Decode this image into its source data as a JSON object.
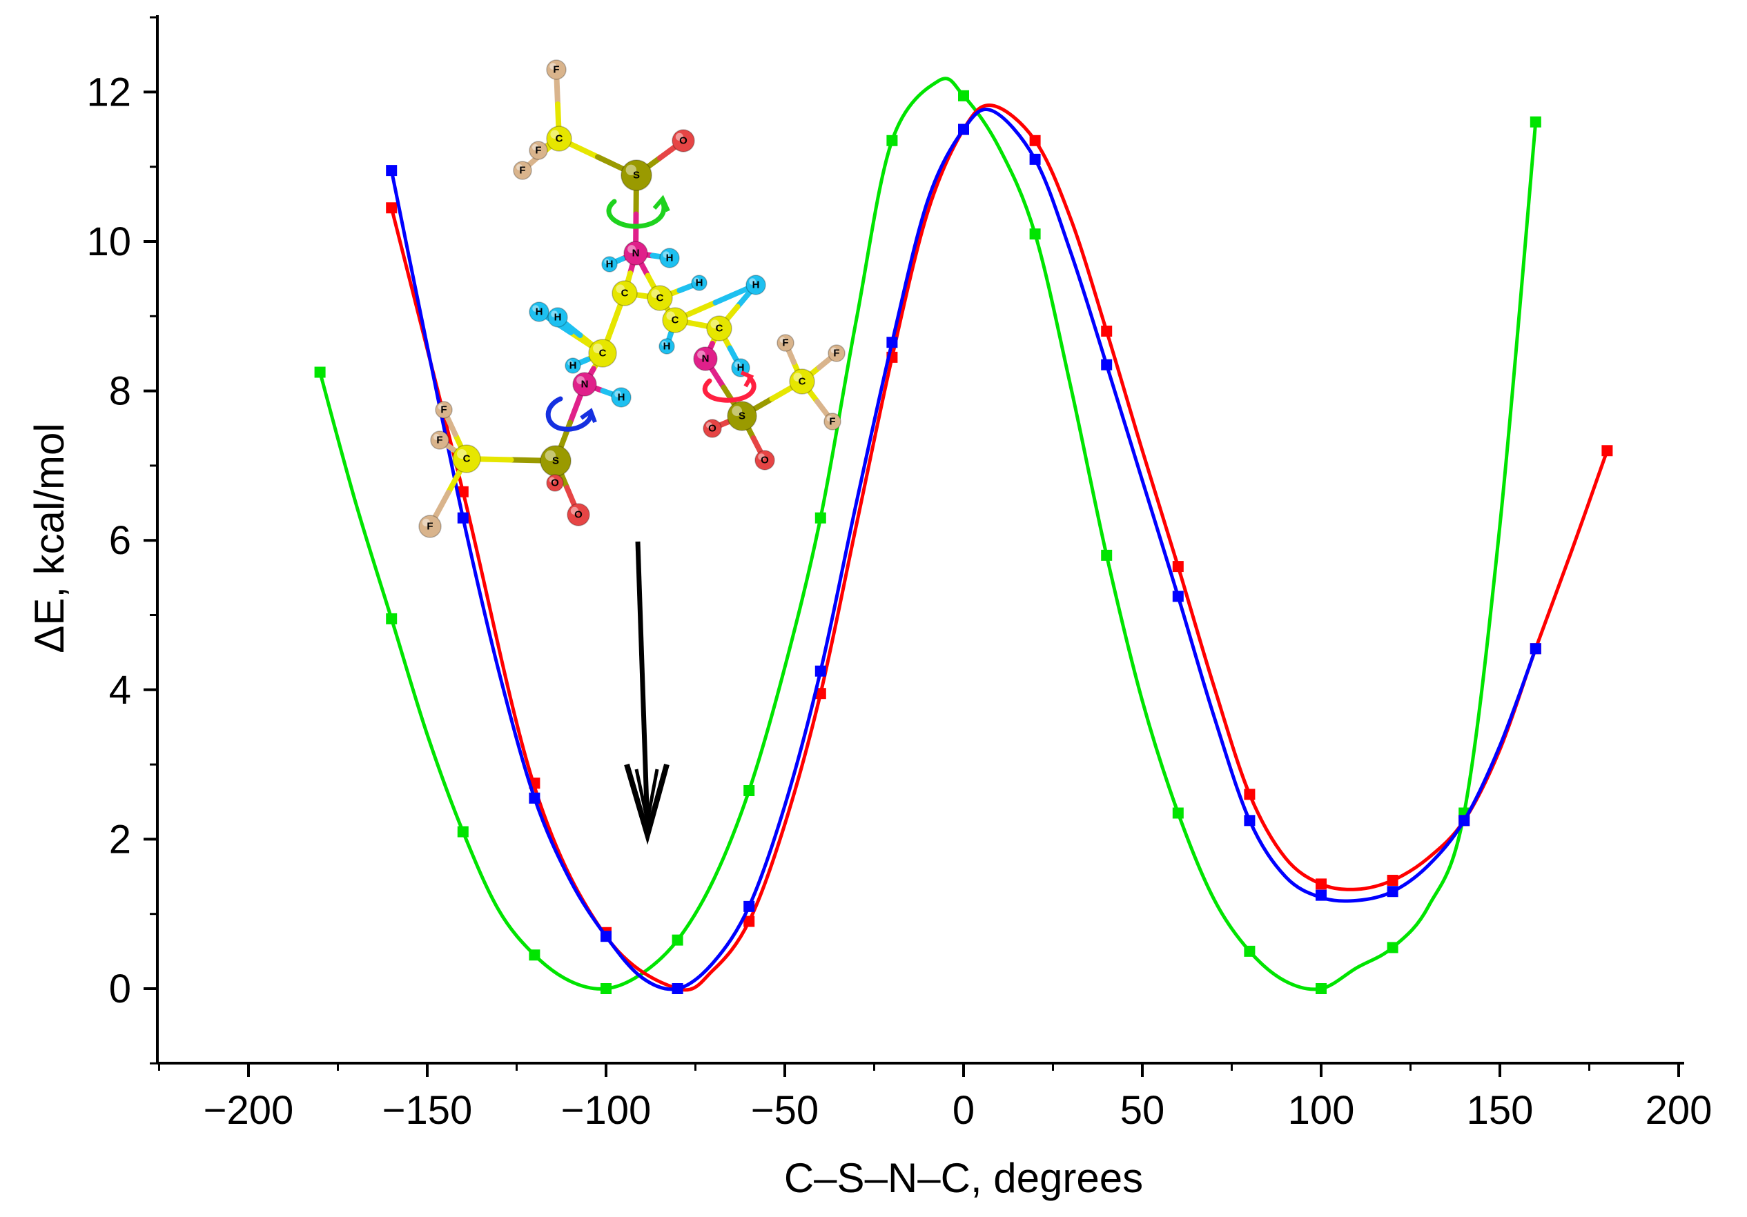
{
  "chart_data": {
    "type": "line",
    "title": "",
    "xlabel": "C–S–N–C, degrees",
    "ylabel": "ΔE, kcal/mol",
    "xlim": [
      -225,
      200
    ],
    "ylim": [
      -1,
      13
    ],
    "x_ticks": [
      -200,
      -150,
      -100,
      -50,
      0,
      50,
      100,
      150,
      200
    ],
    "x_tick_labels": [
      "−200",
      "−150",
      "−100",
      "−50",
      "0",
      "50",
      "100",
      "150",
      "200"
    ],
    "y_ticks": [
      0,
      2,
      4,
      6,
      8,
      10,
      12
    ],
    "y_tick_labels": [
      "0",
      "2",
      "4",
      "6",
      "8",
      "10",
      "12"
    ],
    "grid": false,
    "series": [
      {
        "name": "red",
        "color": "#ff0000",
        "x": [
          -160,
          -140,
          -120,
          -100,
          -80,
          -60,
          -40,
          -20,
          0,
          20,
          40,
          60,
          80,
          100,
          120,
          140,
          160,
          180
        ],
        "values": [
          10.45,
          6.65,
          2.75,
          0.75,
          0.0,
          0.9,
          3.95,
          8.45,
          11.5,
          11.35,
          8.8,
          5.65,
          2.6,
          1.4,
          1.45,
          2.25,
          4.55,
          7.2
        ],
        "curve": [
          [
            -160,
            10.45
          ],
          [
            -140,
            6.65
          ],
          [
            -120,
            2.7
          ],
          [
            -100,
            0.7
          ],
          [
            -80,
            0.0
          ],
          [
            -70,
            0.25
          ],
          [
            -60,
            0.9
          ],
          [
            -50,
            2.2
          ],
          [
            -40,
            3.95
          ],
          [
            -30,
            6.2
          ],
          [
            -20,
            8.45
          ],
          [
            -10,
            10.4
          ],
          [
            0,
            11.5
          ],
          [
            8,
            11.82
          ],
          [
            20,
            11.35
          ],
          [
            30,
            10.3
          ],
          [
            40,
            8.8
          ],
          [
            50,
            7.2
          ],
          [
            60,
            5.65
          ],
          [
            70,
            4.05
          ],
          [
            80,
            2.6
          ],
          [
            90,
            1.75
          ],
          [
            100,
            1.4
          ],
          [
            110,
            1.33
          ],
          [
            120,
            1.45
          ],
          [
            130,
            1.75
          ],
          [
            140,
            2.25
          ],
          [
            150,
            3.2
          ],
          [
            160,
            4.55
          ],
          [
            170,
            5.85
          ],
          [
            180,
            7.2
          ]
        ]
      },
      {
        "name": "blue",
        "color": "#0000ff",
        "x": [
          -160,
          -140,
          -120,
          -100,
          -80,
          -60,
          -40,
          -20,
          0,
          20,
          40,
          60,
          80,
          100,
          120,
          140,
          160
        ],
        "values": [
          10.95,
          6.3,
          2.55,
          0.7,
          0.0,
          1.1,
          4.25,
          8.65,
          11.5,
          11.1,
          8.35,
          5.25,
          2.25,
          1.25,
          1.3,
          2.25,
          4.55
        ],
        "curve": [
          [
            -160,
            10.95
          ],
          [
            -150,
            8.6
          ],
          [
            -140,
            6.3
          ],
          [
            -130,
            4.25
          ],
          [
            -120,
            2.55
          ],
          [
            -110,
            1.45
          ],
          [
            -100,
            0.7
          ],
          [
            -90,
            0.15
          ],
          [
            -80,
            0.0
          ],
          [
            -70,
            0.35
          ],
          [
            -60,
            1.1
          ],
          [
            -50,
            2.45
          ],
          [
            -40,
            4.25
          ],
          [
            -30,
            6.5
          ],
          [
            -20,
            8.65
          ],
          [
            -10,
            10.55
          ],
          [
            0,
            11.5
          ],
          [
            8,
            11.75
          ],
          [
            20,
            11.1
          ],
          [
            30,
            9.85
          ],
          [
            40,
            8.35
          ],
          [
            50,
            6.8
          ],
          [
            60,
            5.25
          ],
          [
            70,
            3.65
          ],
          [
            80,
            2.25
          ],
          [
            90,
            1.5
          ],
          [
            100,
            1.22
          ],
          [
            110,
            1.18
          ],
          [
            120,
            1.3
          ],
          [
            130,
            1.65
          ],
          [
            140,
            2.25
          ],
          [
            150,
            3.25
          ],
          [
            160,
            4.55
          ]
        ]
      },
      {
        "name": "green",
        "color": "#00e400",
        "x": [
          -180,
          -160,
          -140,
          -120,
          -100,
          -80,
          -60,
          -40,
          -20,
          0,
          20,
          40,
          60,
          80,
          100,
          120,
          140,
          160
        ],
        "values": [
          8.25,
          4.95,
          2.1,
          0.45,
          0.0,
          0.65,
          2.65,
          6.3,
          11.35,
          11.95,
          10.1,
          5.8,
          2.35,
          0.5,
          0.0,
          0.55,
          2.35,
          11.6
        ],
        "curve": [
          [
            -180,
            8.25
          ],
          [
            -170,
            6.5
          ],
          [
            -160,
            4.95
          ],
          [
            -150,
            3.4
          ],
          [
            -140,
            2.1
          ],
          [
            -130,
            1.05
          ],
          [
            -120,
            0.45
          ],
          [
            -110,
            0.1
          ],
          [
            -100,
            0.0
          ],
          [
            -90,
            0.2
          ],
          [
            -80,
            0.65
          ],
          [
            -70,
            1.45
          ],
          [
            -60,
            2.65
          ],
          [
            -50,
            4.3
          ],
          [
            -40,
            6.3
          ],
          [
            -30,
            8.95
          ],
          [
            -20,
            11.35
          ],
          [
            -7,
            12.15
          ],
          [
            0,
            11.95
          ],
          [
            10,
            11.25
          ],
          [
            20,
            10.1
          ],
          [
            30,
            8.05
          ],
          [
            40,
            5.8
          ],
          [
            50,
            3.85
          ],
          [
            60,
            2.35
          ],
          [
            70,
            1.2
          ],
          [
            80,
            0.5
          ],
          [
            90,
            0.1
          ],
          [
            100,
            0.0
          ],
          [
            110,
            0.28
          ],
          [
            120,
            0.55
          ],
          [
            130,
            1.1
          ],
          [
            140,
            2.35
          ],
          [
            150,
            6.2
          ],
          [
            160,
            11.6
          ]
        ]
      }
    ],
    "annotations": [
      "molecular structure inset with rotation arrows",
      "black downward arrow pointing to the minimum near −90°"
    ],
    "inset_molecule": {
      "atoms": [
        "F",
        "F",
        "F",
        "C",
        "S",
        "O",
        "N",
        "H",
        "H",
        "C",
        "C",
        "H",
        "H",
        "C",
        "H",
        "H",
        "H",
        "C",
        "C",
        "N",
        "H",
        "H",
        "H",
        "N",
        "H",
        "H",
        "F",
        "F",
        "C",
        "F",
        "S",
        "O",
        "O",
        "F",
        "F",
        "C",
        "F",
        "S",
        "O",
        "O"
      ]
    }
  }
}
